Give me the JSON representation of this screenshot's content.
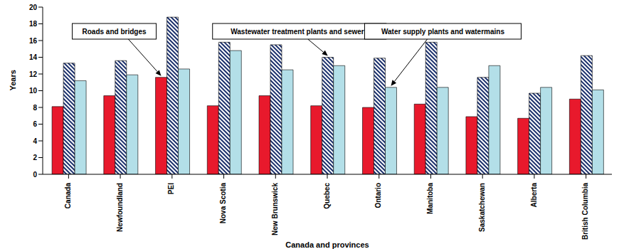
{
  "chart_data": {
    "type": "bar",
    "x_label": "Canada and provinces",
    "y_label": "Years",
    "categories": [
      "Canada",
      "Newfoundland",
      "PEI",
      "Nova Scotia",
      "New Brunswick",
      "Quebec",
      "Ontario",
      "Manitoba",
      "Saskatchewan",
      "Alberta",
      "British Columbia"
    ],
    "series": [
      {
        "name": "Roads and bridges",
        "color": "#e8192c",
        "values": [
          8.1,
          9.4,
          11.6,
          8.2,
          9.4,
          8.2,
          8.0,
          8.4,
          6.9,
          6.7,
          9.0
        ]
      },
      {
        "name": "Wastewater treatment plants and sewers",
        "color": "#1a2f6b",
        "values": [
          13.3,
          13.6,
          18.8,
          15.8,
          15.5,
          14.0,
          13.9,
          15.8,
          11.6,
          9.7,
          14.2
        ]
      },
      {
        "name": "Water supply plants and watermains",
        "color": "#b3dfe8",
        "values": [
          11.2,
          11.9,
          12.6,
          14.8,
          12.5,
          13.0,
          10.4,
          10.4,
          13.0,
          10.4,
          10.1
        ]
      }
    ],
    "annotations": [
      {
        "text": "Roads and bridges",
        "category": "PEI"
      },
      {
        "text": "Wastewater treatment plants and sewers",
        "category": "Quebec"
      },
      {
        "text": "Water supply plants and watermains",
        "category": "Ontario"
      }
    ],
    "ylim": [
      0,
      20
    ],
    "yticks": [
      0,
      2,
      4,
      6,
      8,
      10,
      12,
      14,
      16,
      18,
      20
    ],
    "grid": false
  }
}
